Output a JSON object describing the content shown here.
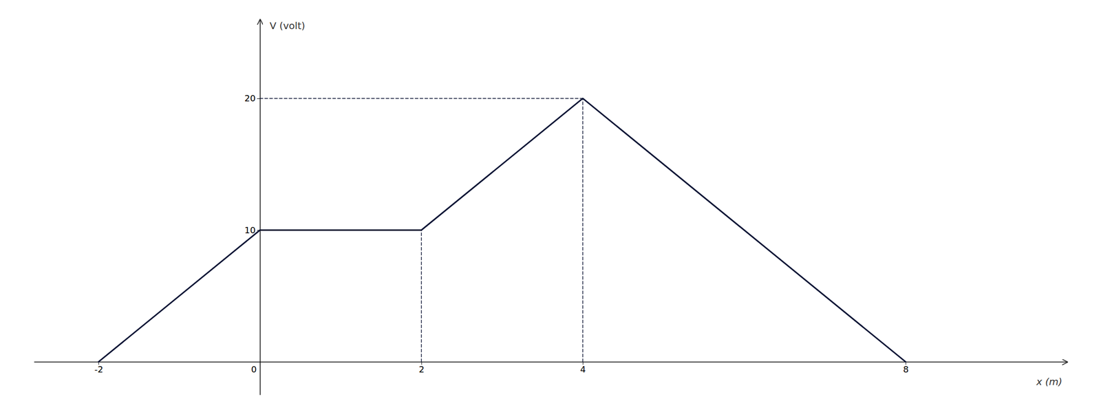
{
  "chart_data": {
    "type": "line",
    "xlabel": "x (m)",
    "ylabel": "V (volt)",
    "xlim": [
      -2.8,
      10.0
    ],
    "ylim": [
      -2.5,
      26
    ],
    "xticks": [
      -2,
      0,
      2,
      4,
      8
    ],
    "yticks": [
      10,
      20
    ],
    "grid": false,
    "series": [
      {
        "color": "#0d1535",
        "line_style": "solid",
        "x": [
          -2,
          0,
          2,
          4,
          8
        ],
        "values": [
          0,
          10,
          10,
          20,
          0
        ]
      },
      {
        "color": "#0d1535",
        "line_style": "dashed",
        "x": [
          0,
          4
        ],
        "values": [
          20,
          20
        ]
      },
      {
        "color": "#0d1535",
        "line_style": "dashed",
        "x": [
          4,
          4
        ],
        "values": [
          0,
          20
        ]
      },
      {
        "color": "#0d1535",
        "line_style": "dashed",
        "x": [
          2,
          2
        ],
        "values": [
          0,
          10
        ]
      }
    ]
  }
}
